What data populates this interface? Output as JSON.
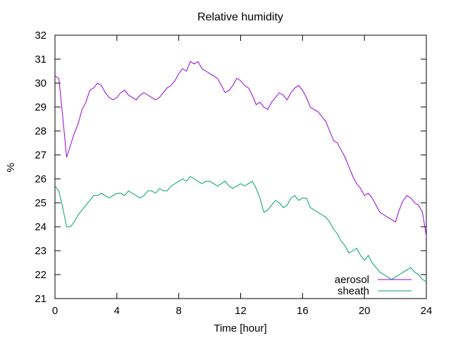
{
  "chart_data": {
    "type": "line",
    "title": "Relative humidity",
    "xlabel": "Time [hour]",
    "ylabel": "%",
    "xlim": [
      0,
      24
    ],
    "ylim": [
      21,
      32
    ],
    "xticks": [
      0,
      4,
      8,
      12,
      16,
      20,
      24
    ],
    "yticks": [
      21,
      22,
      23,
      24,
      25,
      26,
      27,
      28,
      29,
      30,
      31,
      32
    ],
    "grid": false,
    "legend_position": "bottom-right",
    "series": [
      {
        "name": "aerosol",
        "color": "#9400d3",
        "x": [
          0,
          0.25,
          0.5,
          0.75,
          1,
          1.25,
          1.5,
          1.75,
          2,
          2.25,
          2.5,
          2.75,
          3,
          3.25,
          3.5,
          3.75,
          4,
          4.25,
          4.5,
          4.75,
          5,
          5.25,
          5.5,
          5.75,
          6,
          6.25,
          6.5,
          6.75,
          7,
          7.25,
          7.5,
          7.75,
          8,
          8.25,
          8.5,
          8.75,
          9,
          9.25,
          9.5,
          9.75,
          10,
          10.25,
          10.5,
          10.75,
          11,
          11.25,
          11.5,
          11.75,
          12,
          12.25,
          12.5,
          12.75,
          13,
          13.25,
          13.5,
          13.75,
          14,
          14.25,
          14.5,
          14.75,
          15,
          15.25,
          15.5,
          15.75,
          16,
          16.25,
          16.5,
          16.75,
          17,
          17.25,
          17.5,
          17.75,
          18,
          18.25,
          18.5,
          18.75,
          19,
          19.25,
          19.5,
          19.75,
          20,
          20.25,
          20.5,
          20.75,
          21,
          21.25,
          21.5,
          21.75,
          22,
          22.25,
          22.5,
          22.75,
          23,
          23.25,
          23.5,
          23.75,
          24
        ],
        "y": [
          30.3,
          30.2,
          28.6,
          26.9,
          27.4,
          27.9,
          28.3,
          28.9,
          29.2,
          29.7,
          29.8,
          30.0,
          29.9,
          29.6,
          29.4,
          29.3,
          29.4,
          29.6,
          29.7,
          29.5,
          29.4,
          29.3,
          29.5,
          29.6,
          29.5,
          29.4,
          29.3,
          29.4,
          29.6,
          29.8,
          29.9,
          30.1,
          30.4,
          30.6,
          30.5,
          30.9,
          30.8,
          30.9,
          30.6,
          30.5,
          30.4,
          30.3,
          30.2,
          29.9,
          29.6,
          29.7,
          29.9,
          30.2,
          30.1,
          29.9,
          29.8,
          29.5,
          29.1,
          29.2,
          29.0,
          28.9,
          29.2,
          29.4,
          29.6,
          29.5,
          29.3,
          29.6,
          29.8,
          29.9,
          29.7,
          29.4,
          29.0,
          28.9,
          28.8,
          28.6,
          28.4,
          28.0,
          27.6,
          27.5,
          27.2,
          26.9,
          26.5,
          26.1,
          25.8,
          25.6,
          25.3,
          25.4,
          25.2,
          24.9,
          24.6,
          24.5,
          24.4,
          24.3,
          24.2,
          24.7,
          25.1,
          25.3,
          25.2,
          25.0,
          24.9,
          24.6,
          23.6
        ]
      },
      {
        "name": "sheath",
        "color": "#009e73",
        "x": [
          0,
          0.25,
          0.5,
          0.75,
          1,
          1.25,
          1.5,
          1.75,
          2,
          2.25,
          2.5,
          2.75,
          3,
          3.25,
          3.5,
          3.75,
          4,
          4.25,
          4.5,
          4.75,
          5,
          5.25,
          5.5,
          5.75,
          6,
          6.25,
          6.5,
          6.75,
          7,
          7.25,
          7.5,
          7.75,
          8,
          8.25,
          8.5,
          8.75,
          9,
          9.25,
          9.5,
          9.75,
          10,
          10.25,
          10.5,
          10.75,
          11,
          11.25,
          11.5,
          11.75,
          12,
          12.25,
          12.5,
          12.75,
          13,
          13.25,
          13.5,
          13.75,
          14,
          14.25,
          14.5,
          14.75,
          15,
          15.25,
          15.5,
          15.75,
          16,
          16.25,
          16.5,
          16.75,
          17,
          17.25,
          17.5,
          17.75,
          18,
          18.25,
          18.5,
          18.75,
          19,
          19.25,
          19.5,
          19.75,
          20,
          20.25,
          20.5,
          20.75,
          21,
          21.25,
          21.5,
          21.75,
          22,
          22.25,
          22.5,
          22.75,
          23,
          23.25,
          23.5,
          23.75,
          24
        ],
        "y": [
          25.7,
          25.5,
          24.8,
          24.0,
          24.0,
          24.2,
          24.5,
          24.7,
          24.9,
          25.1,
          25.3,
          25.3,
          25.4,
          25.3,
          25.2,
          25.3,
          25.4,
          25.4,
          25.3,
          25.5,
          25.4,
          25.3,
          25.2,
          25.3,
          25.5,
          25.5,
          25.4,
          25.6,
          25.5,
          25.5,
          25.7,
          25.8,
          25.9,
          26.0,
          25.9,
          26.1,
          26.0,
          25.9,
          25.8,
          25.9,
          25.9,
          25.8,
          25.7,
          25.8,
          25.9,
          25.7,
          25.6,
          25.7,
          25.8,
          25.7,
          25.8,
          25.9,
          25.6,
          25.2,
          24.6,
          24.7,
          24.9,
          25.1,
          25.0,
          24.8,
          24.9,
          25.2,
          25.3,
          25.1,
          25.2,
          25.2,
          24.8,
          24.7,
          24.6,
          24.5,
          24.4,
          24.2,
          23.9,
          23.7,
          23.4,
          23.2,
          22.9,
          23.0,
          23.1,
          22.8,
          22.6,
          22.8,
          22.5,
          22.3,
          22.1,
          22.0,
          21.9,
          21.8,
          21.9,
          22.0,
          22.1,
          22.2,
          22.3,
          22.1,
          22.0,
          21.8,
          21.7
        ]
      }
    ]
  }
}
